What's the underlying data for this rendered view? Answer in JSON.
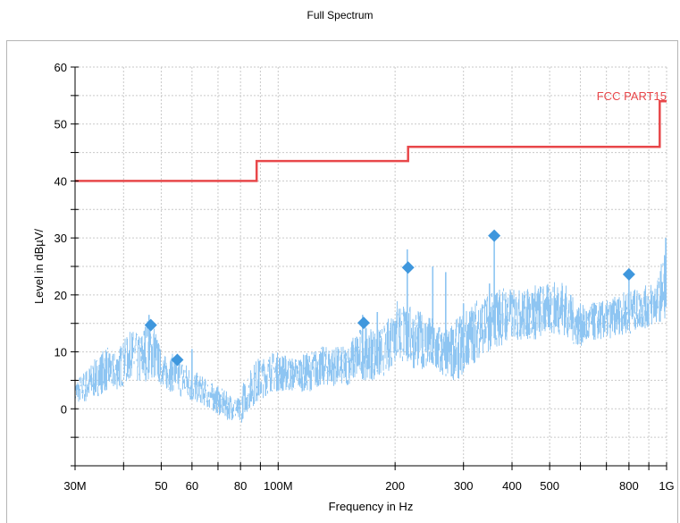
{
  "chart_data": {
    "type": "line",
    "title": "Full Spectrum",
    "xlabel": "Frequency in Hz",
    "ylabel": "Level in dBµV/",
    "x_scale": "log",
    "xlim": [
      30000000,
      1000000000
    ],
    "ylim": [
      -10,
      60
    ],
    "grid": true,
    "x_tick_labels": [
      {
        "value": 30000000,
        "label": "30M"
      },
      {
        "value": 50000000,
        "label": "50"
      },
      {
        "value": 60000000,
        "label": "60"
      },
      {
        "value": 80000000,
        "label": "80"
      },
      {
        "value": 100000000,
        "label": "100M"
      },
      {
        "value": 200000000,
        "label": "200"
      },
      {
        "value": 300000000,
        "label": "300"
      },
      {
        "value": 400000000,
        "label": "400"
      },
      {
        "value": 500000000,
        "label": "500"
      },
      {
        "value": 800000000,
        "label": "800"
      },
      {
        "value": 1000000000,
        "label": "1G"
      }
    ],
    "y_tick_labels": [
      {
        "value": 0,
        "label": "0"
      },
      {
        "value": 10,
        "label": "10"
      },
      {
        "value": 20,
        "label": "20"
      },
      {
        "value": 30,
        "label": "30"
      },
      {
        "value": 40,
        "label": "40"
      },
      {
        "value": 50,
        "label": "50"
      },
      {
        "value": 60,
        "label": "60"
      }
    ],
    "series": [
      {
        "name": "FCC PART15",
        "kind": "limit",
        "color": "#e8474a",
        "points": [
          [
            30000000,
            40.0
          ],
          [
            88000000,
            40.0
          ],
          [
            88000000,
            43.5
          ],
          [
            216000000,
            43.5
          ],
          [
            216000000,
            46.0
          ],
          [
            960000000,
            46.0
          ],
          [
            960000000,
            54.0
          ],
          [
            1000000000,
            54.0
          ]
        ]
      },
      {
        "kind": "measurement-envelope",
        "color": "#8ec5f2",
        "x": [
          30000000,
          32000000,
          34000000,
          36000000,
          38000000,
          40000000,
          42000000,
          44000000,
          46000000,
          48000000,
          50000000,
          52000000,
          54000000,
          56000000,
          58000000,
          60000000,
          63000000,
          66000000,
          70000000,
          74000000,
          78000000,
          80000000,
          82000000,
          85000000,
          88000000,
          92000000,
          96000000,
          100000000,
          110000000,
          120000000,
          130000000,
          140000000,
          150000000,
          160000000,
          170000000,
          180000000,
          190000000,
          200000000,
          210000000,
          220000000,
          235000000,
          250000000,
          270000000,
          290000000,
          310000000,
          330000000,
          350000000,
          375000000,
          400000000,
          430000000,
          460000000,
          500000000,
          540000000,
          580000000,
          620000000,
          660000000,
          700000000,
          750000000,
          800000000,
          850000000,
          900000000,
          950000000,
          1000000000
        ],
        "max": [
          5,
          7,
          9,
          11,
          10,
          12,
          14,
          13,
          16,
          15,
          10,
          9,
          10,
          9,
          8,
          7,
          6,
          5,
          4,
          3,
          2,
          2,
          6,
          7,
          9,
          9,
          10,
          10,
          9,
          10,
          11,
          11,
          11,
          14,
          15,
          14,
          15,
          20,
          19,
          18,
          17,
          16,
          14,
          16,
          18,
          20,
          20,
          22,
          21,
          21,
          22,
          22,
          23,
          19,
          18,
          19,
          19,
          20,
          21,
          21,
          22,
          23,
          30
        ],
        "min": [
          1,
          1,
          2,
          3,
          3,
          4,
          5,
          4,
          5,
          5,
          4,
          3,
          3,
          2,
          2,
          1,
          1,
          0,
          -1,
          -2,
          -2,
          -3,
          -1,
          0,
          1,
          2,
          3,
          3,
          3,
          3,
          4,
          4,
          4,
          5,
          5,
          5,
          6,
          8,
          8,
          7,
          7,
          6,
          5,
          5,
          7,
          9,
          10,
          11,
          12,
          12,
          12,
          13,
          13,
          11,
          11,
          12,
          12,
          13,
          13,
          14,
          14,
          15,
          16
        ]
      },
      {
        "kind": "measurement-spikes",
        "color": "#8ec5f2",
        "x": [
          46500000,
          60000000,
          165000000,
          180000000,
          199000000,
          215000000,
          250000000,
          270000000,
          300000000,
          350000000,
          360000000,
          420000000,
          470000000,
          650000000,
          800000000,
          995000000
        ],
        "y": [
          16.5,
          10.5,
          16.5,
          17.0,
          15.0,
          28.0,
          25.0,
          24.0,
          18.5,
          22.0,
          29.5,
          17.0,
          17.5,
          18.5,
          23.0,
          30.0
        ]
      },
      {
        "kind": "peaks",
        "color": "#3f97dd",
        "x": [
          47000000,
          55000000,
          166000000,
          216000000,
          360000000,
          800000000
        ],
        "y": [
          14.7,
          8.6,
          15.1,
          24.8,
          30.4,
          23.6
        ]
      }
    ]
  }
}
